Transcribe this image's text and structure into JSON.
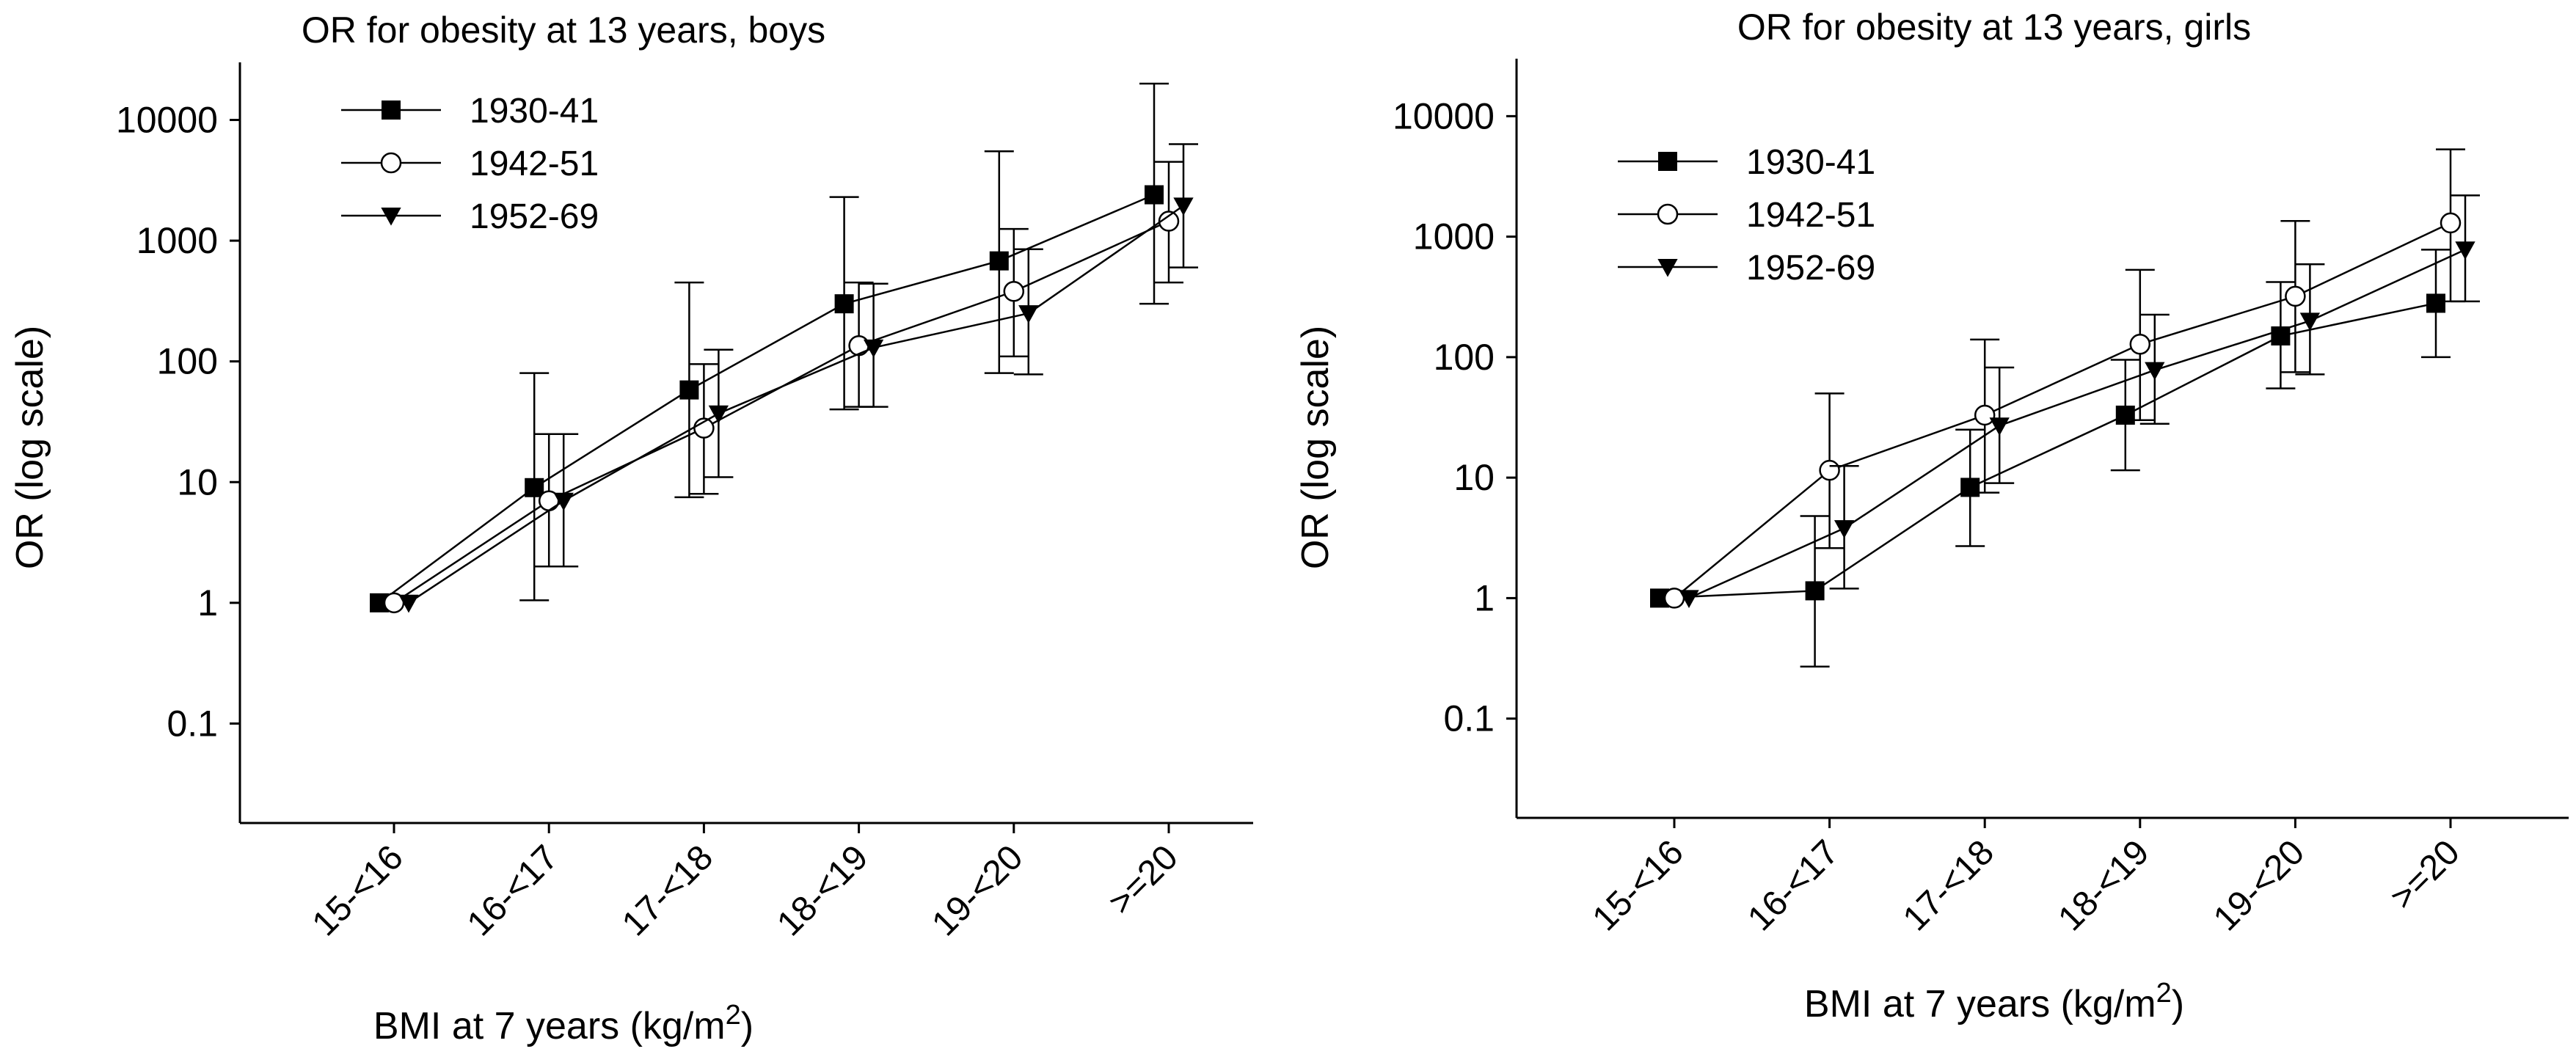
{
  "chart_data": [
    {
      "type": "line",
      "title": "OR for obesity at 13 years, boys",
      "xlabel": "BMI at 7 years (kg/m",
      "xlabel_sup": "2",
      "xlabel_suffix": ")",
      "ylabel": "OR (log scale)",
      "yscale": "log",
      "ylim": [
        0.015,
        30000
      ],
      "yticks": [
        0.1,
        1,
        10,
        100,
        1000,
        10000
      ],
      "ytick_labels": [
        "0.1",
        "1",
        "10",
        "100",
        "1000",
        "10000"
      ],
      "categories": [
        "15-<16",
        "16-<17",
        "17-<18",
        "18-<19",
        "19-<20",
        ">=20"
      ],
      "grid": false,
      "legend": "top-left",
      "series": [
        {
          "name": "1930-41",
          "marker": "square",
          "offset": -1,
          "values": [
            1,
            9,
            58,
            300,
            680,
            2400
          ],
          "ci_low": [
            null,
            1.05,
            7.5,
            40,
            80,
            300
          ],
          "ci_high": [
            null,
            80,
            450,
            2300,
            5500,
            20000
          ]
        },
        {
          "name": "1942-51",
          "marker": "circle",
          "offset": 0,
          "values": [
            1,
            7,
            28,
            135,
            380,
            1450
          ],
          "ci_low": [
            null,
            2,
            8,
            42,
            110,
            450
          ],
          "ci_high": [
            null,
            25,
            95,
            450,
            1250,
            4500
          ]
        },
        {
          "name": "1952-69",
          "marker": "triangle-down",
          "offset": 1,
          "values": [
            1,
            7,
            37,
            130,
            250,
            1950
          ],
          "ci_low": [
            null,
            2,
            11,
            42,
            78,
            600
          ],
          "ci_high": [
            null,
            25,
            125,
            440,
            850,
            6300
          ]
        }
      ]
    },
    {
      "type": "line",
      "title": "OR for obesity at 13 years, girls",
      "xlabel": "BMI at 7 years (kg/m",
      "xlabel_sup": "2",
      "xlabel_suffix": ")",
      "ylabel": "OR (log scale)",
      "yscale": "log",
      "ylim": [
        0.015,
        30000
      ],
      "yticks": [
        0.1,
        1,
        10,
        100,
        1000,
        10000
      ],
      "ytick_labels": [
        "0.1",
        "1",
        "10",
        "100",
        "1000",
        "10000"
      ],
      "categories": [
        "15-<16",
        "16-<17",
        "17-<18",
        "18-<19",
        "19-<20",
        ">=20"
      ],
      "grid": false,
      "legend": "top-left",
      "series": [
        {
          "name": "1930-41",
          "marker": "square",
          "offset": -1,
          "values": [
            1,
            1.15,
            8.3,
            33,
            150,
            280
          ],
          "ci_low": [
            null,
            0.27,
            2.7,
            11.5,
            55,
            100
          ],
          "ci_high": [
            null,
            4.8,
            25,
            95,
            420,
            780
          ]
        },
        {
          "name": "1942-51",
          "marker": "circle",
          "offset": 0,
          "values": [
            1,
            11.5,
            33,
            128,
            320,
            1300
          ],
          "ci_low": [
            null,
            2.6,
            7.5,
            30,
            75,
            290
          ],
          "ci_high": [
            null,
            50,
            140,
            530,
            1350,
            5300
          ]
        },
        {
          "name": "1952-69",
          "marker": "triangle-down",
          "offset": 1,
          "values": [
            1,
            3.8,
            27,
            78,
            200,
            780
          ],
          "ci_low": [
            null,
            1.2,
            9,
            28,
            72,
            290
          ],
          "ci_high": [
            null,
            12.5,
            82,
            225,
            590,
            2200
          ]
        }
      ]
    }
  ]
}
